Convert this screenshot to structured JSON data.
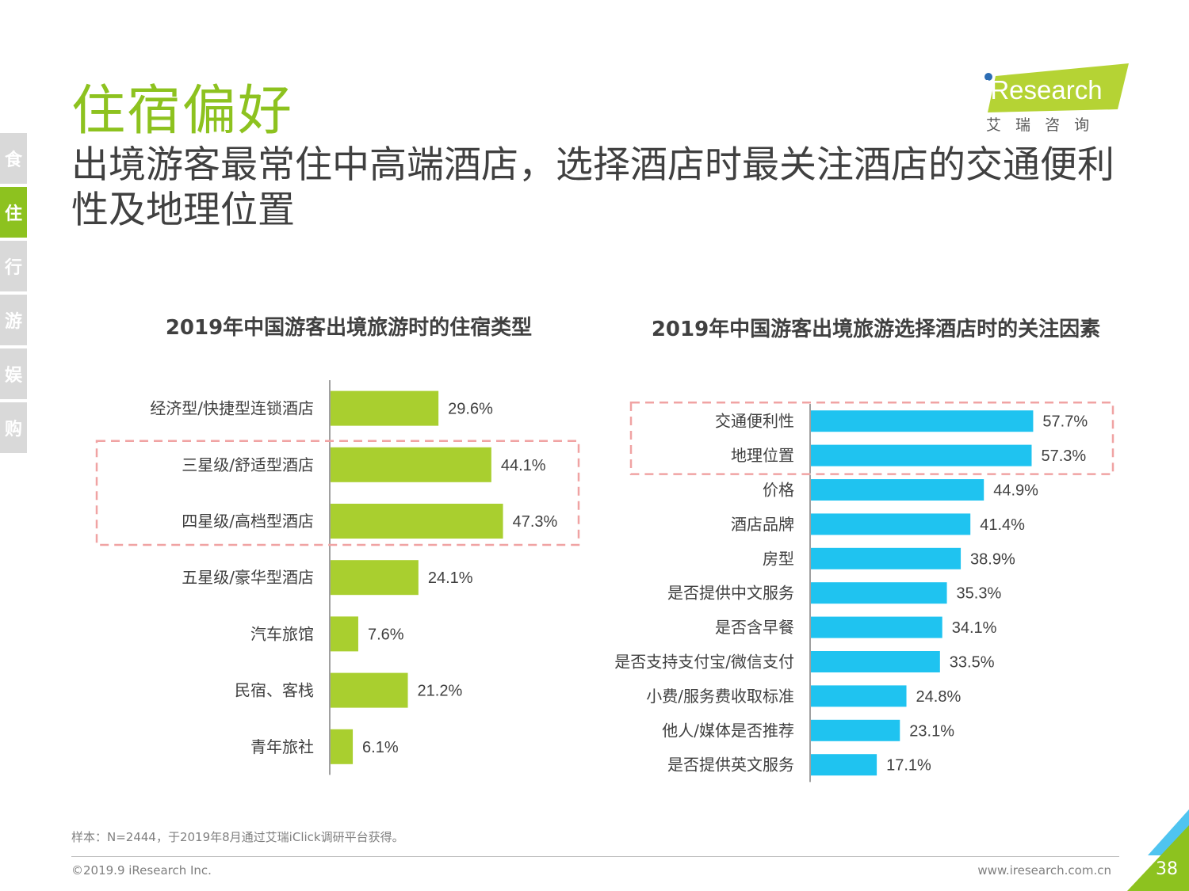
{
  "side_nav": [
    "食",
    "住",
    "行",
    "游",
    "娱",
    "购"
  ],
  "page_title": "住宿偏好",
  "headline": "出境游客最常住中高端酒店，选择酒店时最关注酒店的交通便利性及地理位置",
  "logo": {
    "brand": "iResearch",
    "sub": "艾 瑞 咨 询"
  },
  "colors": {
    "green": "#a9cf2f",
    "blue": "#1fc3f0",
    "title_green": "#8dc21f",
    "highlight_border": "#f0a3a3"
  },
  "chart_data": [
    {
      "type": "bar",
      "orientation": "horizontal",
      "title": "2019年中国游客出境旅游时的住宿类型",
      "categories": [
        "经济型/快捷型连锁酒店",
        "三星级/舒适型酒店",
        "四星级/高档型酒店",
        "五星级/豪华型酒店",
        "汽车旅馆",
        "民宿、客栈",
        "青年旅社"
      ],
      "values": [
        29.6,
        44.1,
        47.3,
        24.1,
        7.6,
        21.2,
        6.1
      ],
      "labels": [
        "29.6%",
        "44.1%",
        "47.3%",
        "24.1%",
        "7.6%",
        "21.2%",
        "6.1%"
      ],
      "xlim": [
        0,
        100
      ],
      "highlighted": [
        1,
        2
      ]
    },
    {
      "type": "bar",
      "orientation": "horizontal",
      "title": "2019年中国游客出境旅游选择酒店时的关注因素",
      "categories": [
        "交通便利性",
        "地理位置",
        "价格",
        "酒店品牌",
        "房型",
        "是否提供中文服务",
        "是否含早餐",
        "是否支持支付宝/微信支付",
        "小费/服务费收取标准",
        "他人/媒体是否推荐",
        "是否提供英文服务"
      ],
      "values": [
        57.7,
        57.3,
        44.9,
        41.4,
        38.9,
        35.3,
        34.1,
        33.5,
        24.8,
        23.1,
        17.1
      ],
      "labels": [
        "57.7%",
        "57.3%",
        "44.9%",
        "41.4%",
        "38.9%",
        "35.3%",
        "34.1%",
        "33.5%",
        "24.8%",
        "23.1%",
        "17.1%"
      ],
      "xlim": [
        0,
        100
      ],
      "highlighted": [
        0,
        1
      ]
    }
  ],
  "footnote": "样本：N=2444，于2019年8月通过艾瑞iClick调研平台获得。",
  "copyright": "©2019.9 iResearch Inc.",
  "website": "www.iresearch.com.cn",
  "page_number": "38"
}
